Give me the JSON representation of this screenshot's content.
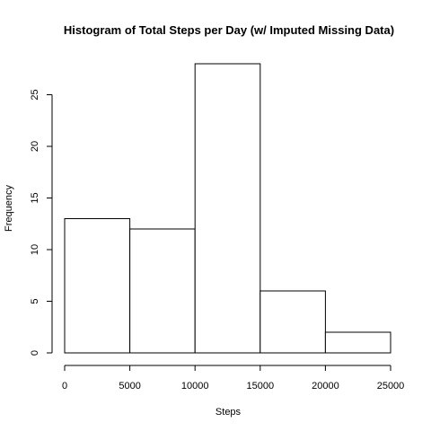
{
  "chart_data": {
    "type": "bar",
    "title": "Histogram of Total Steps per Day (w/ Imputed Missing Data)",
    "xlabel": "Steps",
    "ylabel": "Frequency",
    "bins": [
      {
        "from": 0,
        "to": 5000,
        "count": 13
      },
      {
        "from": 5000,
        "to": 10000,
        "count": 12
      },
      {
        "from": 10000,
        "to": 15000,
        "count": 28
      },
      {
        "from": 15000,
        "to": 20000,
        "count": 6
      },
      {
        "from": 20000,
        "to": 25000,
        "count": 2
      }
    ],
    "xlim": [
      0,
      25000
    ],
    "ylim": [
      0,
      28
    ],
    "xticks": [
      "0",
      "5000",
      "10000",
      "15000",
      "20000",
      "25000"
    ],
    "yticks": [
      "0",
      "5",
      "10",
      "15",
      "20",
      "25"
    ],
    "grid": false,
    "bar_fill": "#ffffff",
    "bar_stroke": "#000000"
  }
}
